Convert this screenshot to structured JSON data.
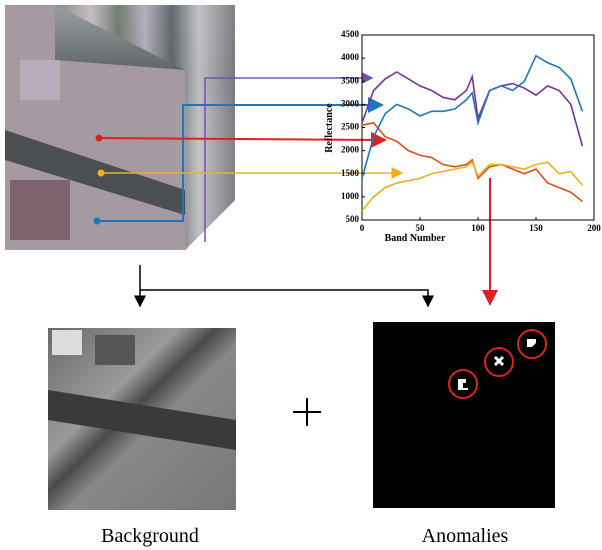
{
  "chart_data": {
    "type": "line",
    "x_label": "Band Number",
    "y_label": "Reflectance",
    "xlim": [
      0,
      200
    ],
    "xticks": [
      0,
      50,
      100,
      150,
      200
    ],
    "ylim": [
      500,
      4500
    ],
    "yticks": [
      500,
      1000,
      1500,
      2000,
      2500,
      3000,
      3500,
      4000,
      4500
    ],
    "x": [
      0,
      10,
      20,
      30,
      40,
      50,
      60,
      70,
      80,
      90,
      95,
      100,
      110,
      120,
      130,
      140,
      150,
      160,
      170,
      180,
      190
    ],
    "series": [
      {
        "color": "#7b2fa0",
        "values": [
          2600,
          3300,
          3550,
          3700,
          3550,
          3400,
          3300,
          3150,
          3100,
          3300,
          3600,
          2700,
          3300,
          3400,
          3450,
          3350,
          3200,
          3400,
          3300,
          3000,
          2100
        ]
      },
      {
        "color": "#1a78c2",
        "values": [
          1400,
          2300,
          2800,
          3000,
          2900,
          2750,
          2850,
          2850,
          2900,
          3100,
          3250,
          2600,
          3300,
          3400,
          3300,
          3500,
          4050,
          3900,
          3800,
          3550,
          2850
        ]
      },
      {
        "color": "#d95319",
        "values": [
          2550,
          2600,
          2300,
          2200,
          2000,
          1900,
          1850,
          1700,
          1650,
          1700,
          1800,
          1400,
          1650,
          1700,
          1600,
          1500,
          1600,
          1300,
          1200,
          1100,
          900
        ]
      },
      {
        "color": "#edb120",
        "values": [
          700,
          1000,
          1200,
          1300,
          1350,
          1400,
          1500,
          1550,
          1600,
          1650,
          1750,
          1450,
          1700,
          1700,
          1650,
          1600,
          1700,
          1750,
          1500,
          1550,
          1250
        ]
      }
    ]
  },
  "captions": {
    "background": "Background",
    "anomalies": "Anomalies"
  }
}
